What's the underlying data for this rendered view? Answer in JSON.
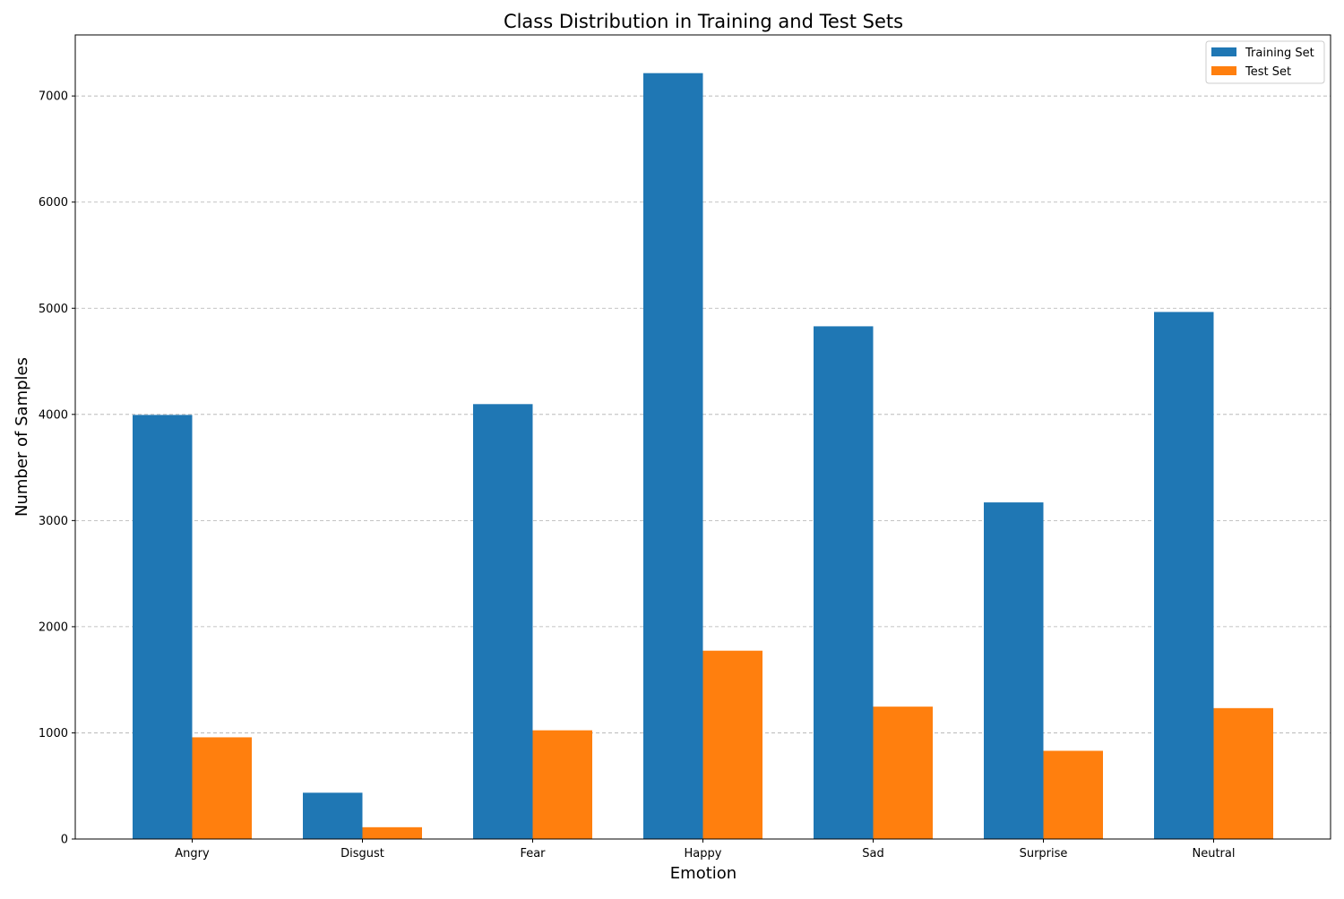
{
  "chart_data": {
    "type": "bar",
    "title": "Class Distribution in Training and Test Sets",
    "xlabel": "Emotion",
    "ylabel": "Number of Samples",
    "categories": [
      "Angry",
      "Disgust",
      "Fear",
      "Happy",
      "Sad",
      "Surprise",
      "Neutral"
    ],
    "series": [
      {
        "name": "Training Set",
        "color": "#1f77b4",
        "values": [
          3995,
          436,
          4097,
          7215,
          4830,
          3171,
          4965
        ]
      },
      {
        "name": "Test Set",
        "color": "#ff7f0e",
        "values": [
          958,
          111,
          1024,
          1774,
          1247,
          831,
          1233
        ]
      }
    ],
    "ylim": [
      0,
      7575
    ],
    "yticks": [
      0,
      1000,
      2000,
      3000,
      4000,
      5000,
      6000,
      7000
    ],
    "grid": "y-dashed",
    "legend_position": "top-right"
  }
}
